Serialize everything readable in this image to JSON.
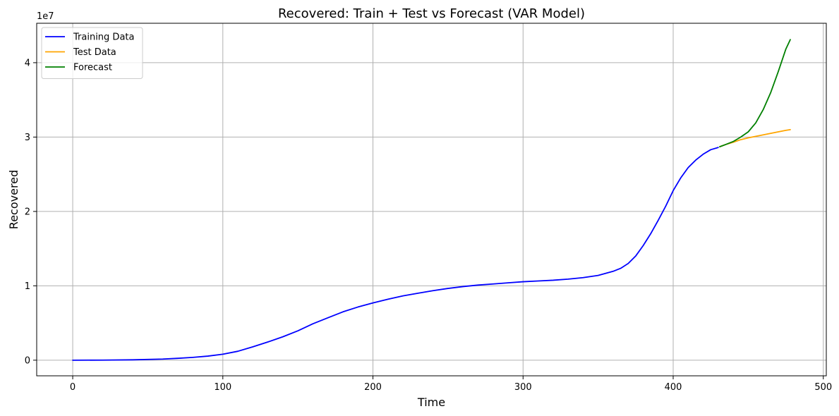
{
  "chart_data": {
    "type": "line",
    "title": "Recovered: Train + Test vs Forecast (VAR Model)",
    "xlabel": "Time",
    "ylabel": "Recovered",
    "y_offset_label": "1e7",
    "xlim": [
      -24,
      502
    ],
    "ylim": [
      -2100000,
      45300000
    ],
    "x_ticks": [
      0,
      100,
      200,
      300,
      400,
      500
    ],
    "x_tick_labels": [
      "0",
      "100",
      "200",
      "300",
      "400",
      "500"
    ],
    "y_ticks": [
      0,
      10000000,
      20000000,
      30000000,
      40000000
    ],
    "y_tick_labels": [
      "0",
      "1",
      "2",
      "3",
      "4"
    ],
    "grid": true,
    "legend_position": "top-left",
    "series": [
      {
        "name": "Training Data",
        "color": "#0000ff",
        "x": [
          0,
          20,
          40,
          60,
          70,
          80,
          90,
          100,
          110,
          120,
          130,
          140,
          150,
          160,
          170,
          180,
          190,
          200,
          210,
          220,
          230,
          240,
          250,
          260,
          270,
          280,
          290,
          300,
          310,
          320,
          330,
          340,
          350,
          360,
          365,
          370,
          375,
          380,
          385,
          390,
          395,
          400,
          405,
          410,
          415,
          420,
          425,
          430
        ],
        "y": [
          0,
          10000,
          50000,
          150000,
          250000,
          380000,
          550000,
          800000,
          1200000,
          1800000,
          2450000,
          3150000,
          3950000,
          4900000,
          5700000,
          6500000,
          7150000,
          7700000,
          8200000,
          8650000,
          9000000,
          9350000,
          9650000,
          9900000,
          10100000,
          10250000,
          10400000,
          10550000,
          10650000,
          10750000,
          10900000,
          11100000,
          11400000,
          11950000,
          12350000,
          13000000,
          14000000,
          15400000,
          17000000,
          18800000,
          20700000,
          22800000,
          24500000,
          25900000,
          26900000,
          27700000,
          28300000,
          28600000
        ]
      },
      {
        "name": "Test Data",
        "color": "#ffa500",
        "x": [
          431,
          435,
          440,
          445,
          450,
          455,
          460,
          465,
          470,
          475,
          478
        ],
        "y": [
          28700000,
          29000000,
          29300000,
          29650000,
          29900000,
          30100000,
          30300000,
          30500000,
          30700000,
          30900000,
          31000000
        ]
      },
      {
        "name": "Forecast",
        "color": "#008000",
        "x": [
          431,
          435,
          440,
          445,
          450,
          455,
          460,
          465,
          470,
          475,
          478
        ],
        "y": [
          28700000,
          29000000,
          29400000,
          30000000,
          30700000,
          31900000,
          33700000,
          36000000,
          38800000,
          41800000,
          43100000
        ]
      }
    ]
  }
}
